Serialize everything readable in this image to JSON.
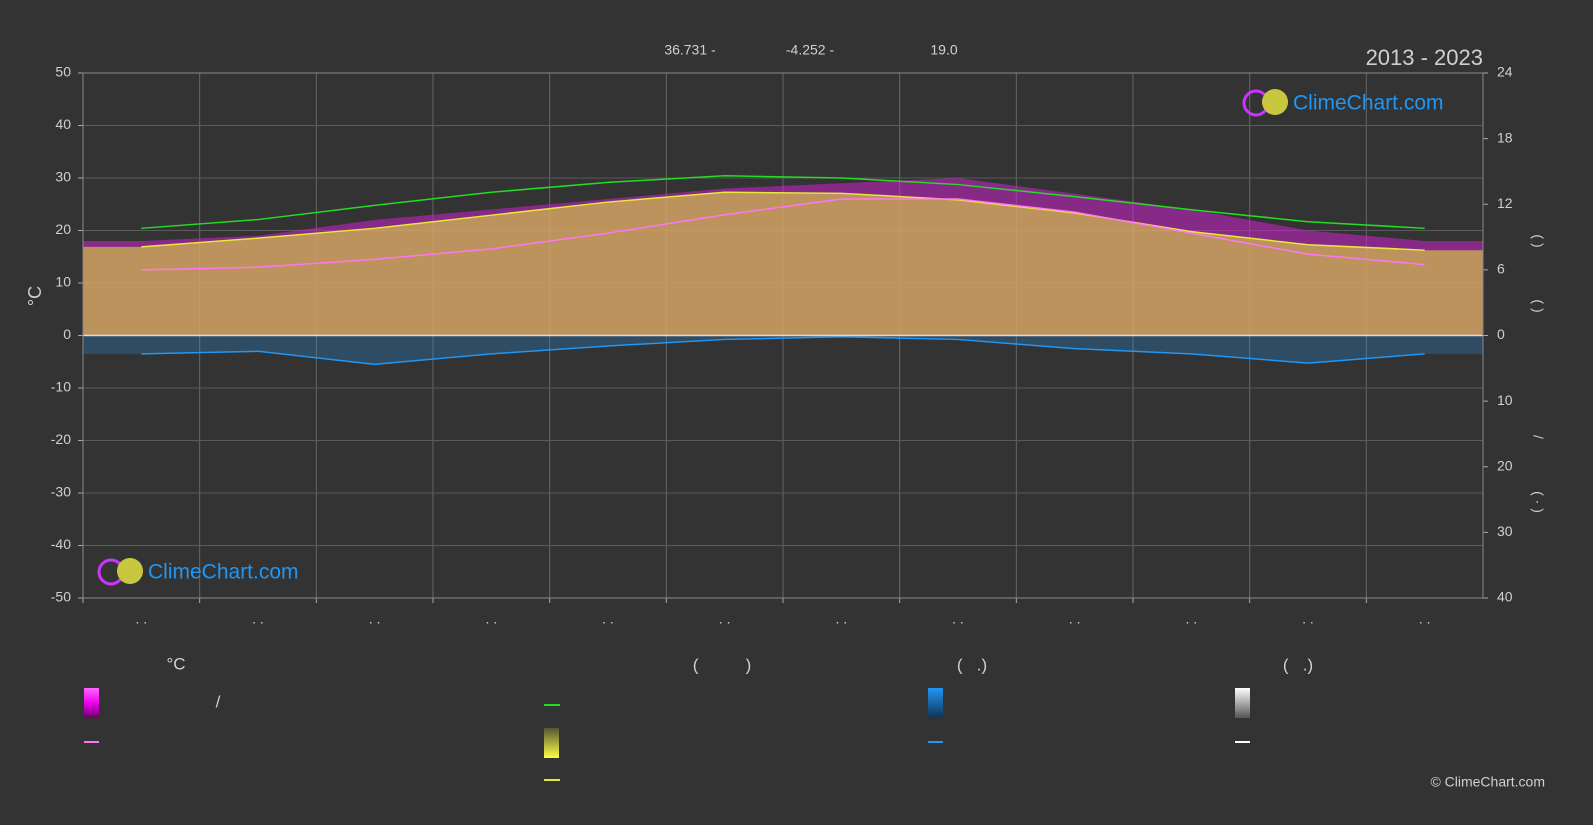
{
  "chart_data": {
    "type": "line",
    "title": "2013 - 2023",
    "header": [
      "36.731 -",
      "-4.252 -",
      "19.0"
    ],
    "categories": [
      ". .",
      ". .",
      ". .",
      ". .",
      ". .",
      ". .",
      ". .",
      ". .",
      ". .",
      ". .",
      ". .",
      ". ."
    ],
    "ylabel": "°C",
    "ylim": [
      -50,
      50
    ],
    "yticks": [
      50,
      40,
      30,
      20,
      10,
      0,
      -10,
      -20,
      -30,
      -40,
      -50
    ],
    "y2lim": [
      0,
      24
    ],
    "y2ticks": [
      0,
      6,
      12,
      18,
      24
    ],
    "y3lim": [
      0,
      40
    ],
    "y3ticks": [
      10,
      20,
      30,
      40
    ],
    "y2_label": [
      "(   )",
      "(   )",
      "/",
      "(  ·  )"
    ],
    "grid": true,
    "series": [
      {
        "color": "#cc22cc",
        "fill": true,
        "values": [
          18,
          19,
          22,
          24,
          26,
          28,
          29,
          30,
          27,
          24,
          20,
          18
        ]
      },
      {
        "color": "#e8e83a",
        "axis": "y2",
        "fill": true,
        "values": [
          8.1,
          8.9,
          9.8,
          11.0,
          12.2,
          13.1,
          13.0,
          12.4,
          11.2,
          9.5,
          8.3,
          7.8
        ]
      },
      {
        "color": "#22dd22",
        "axis": "y2",
        "values": [
          9.8,
          10.6,
          11.9,
          13.1,
          14.0,
          14.6,
          14.4,
          13.8,
          12.7,
          11.5,
          10.4,
          9.8
        ]
      },
      {
        "color": "#ff77ee",
        "values": [
          12.5,
          13,
          14.5,
          16.5,
          19.5,
          23,
          26,
          26,
          23.5,
          19.5,
          15.5,
          13.5
        ]
      },
      {
        "color": "#2196f3",
        "axis": "y3",
        "fill": true,
        "values": [
          2.8,
          2.4,
          4.4,
          2.8,
          1.6,
          0.6,
          0.2,
          0.6,
          2.0,
          2.8,
          4.2,
          2.8
        ]
      }
    ],
    "legend_texts": [
      "°C",
      "/",
      "(          )",
      "(   .)",
      "(   .)"
    ],
    "watermark": "ClimeChart.com",
    "copyright": "© ClimeChart.com"
  }
}
